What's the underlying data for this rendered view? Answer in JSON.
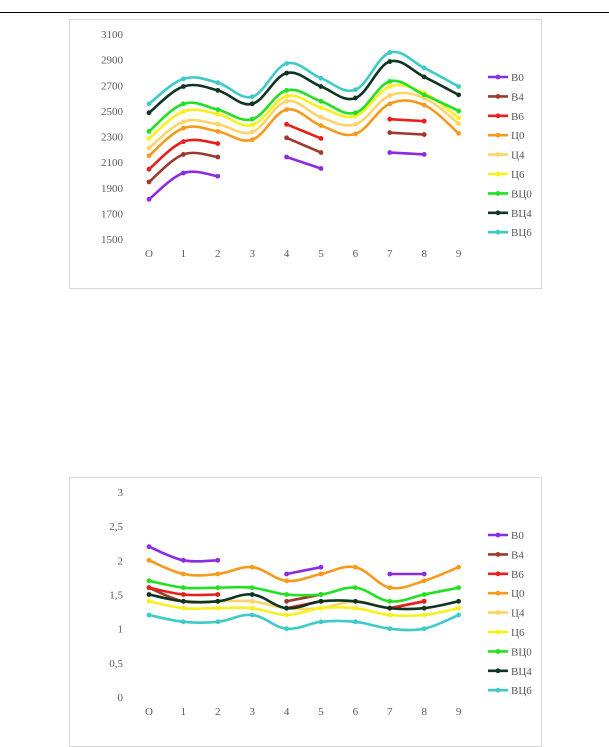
{
  "chart_data": [
    {
      "type": "line",
      "categories": [
        "O",
        "1",
        "2",
        "3",
        "4",
        "5",
        "6",
        "7",
        "8",
        "9"
      ],
      "yticks": [
        "1500",
        "1700",
        "1900",
        "2100",
        "2300",
        "2500",
        "2700",
        "2900",
        "3100"
      ],
      "ylim": [
        1500,
        3100
      ],
      "smooth": true,
      "grid": false,
      "legend_position": "right",
      "series": [
        {
          "name": "В0",
          "color": "#8b2be2",
          "values": [
            1810,
            2015,
            1990,
            null,
            2140,
            2050,
            null,
            2175,
            2160,
            null
          ]
        },
        {
          "name": "В4",
          "color": "#9e3a2d",
          "values": [
            1945,
            2160,
            2140,
            null,
            2290,
            2175,
            null,
            2330,
            2315,
            null
          ]
        },
        {
          "name": "В6",
          "color": "#e8201a",
          "values": [
            2045,
            2260,
            2245,
            null,
            2395,
            2285,
            null,
            2435,
            2420,
            null
          ]
        },
        {
          "name": "Ц0",
          "color": "#f59a1c",
          "values": [
            2150,
            2365,
            2340,
            2275,
            2510,
            2385,
            2320,
            2555,
            2545,
            2325
          ]
        },
        {
          "name": "Ц4",
          "color": "#fdd468",
          "values": [
            2210,
            2415,
            2395,
            2335,
            2575,
            2450,
            2395,
            2620,
            2600,
            2400
          ]
        },
        {
          "name": "Ц6",
          "color": "#f6f11f",
          "values": [
            2285,
            2495,
            2475,
            2390,
            2615,
            2525,
            2460,
            2690,
            2640,
            2445
          ]
        },
        {
          "name": "ВЦ0",
          "color": "#22e023",
          "values": [
            2340,
            2555,
            2510,
            2435,
            2660,
            2575,
            2485,
            2730,
            2625,
            2500
          ]
        },
        {
          "name": "ВЦ4",
          "color": "#0e3524",
          "values": [
            2485,
            2690,
            2660,
            2555,
            2795,
            2690,
            2600,
            2885,
            2765,
            2625
          ]
        },
        {
          "name": "ВЦ6",
          "color": "#3ccbc7",
          "values": [
            2555,
            2750,
            2720,
            2610,
            2870,
            2755,
            2665,
            2955,
            2835,
            2690
          ]
        }
      ]
    },
    {
      "type": "line",
      "categories": [
        "O",
        "1",
        "2",
        "3",
        "4",
        "5",
        "6",
        "7",
        "8",
        "9"
      ],
      "yticks": [
        "0",
        "0,5",
        "1",
        "1,5",
        "2",
        "2,5",
        "3"
      ],
      "ylim": [
        0,
        3
      ],
      "smooth": true,
      "grid": false,
      "legend_position": "right",
      "series": [
        {
          "name": "В0",
          "color": "#8b2be2",
          "values": [
            2.2,
            2.0,
            2.0,
            null,
            1.8,
            1.9,
            null,
            1.8,
            1.8,
            null
          ]
        },
        {
          "name": "В4",
          "color": "#9e3a2d",
          "values": [
            1.6,
            1.4,
            1.4,
            null,
            1.4,
            1.5,
            null,
            1.3,
            1.4,
            null
          ]
        },
        {
          "name": "В6",
          "color": "#e8201a",
          "values": [
            1.6,
            1.5,
            1.5,
            null,
            1.3,
            1.4,
            null,
            1.3,
            1.4,
            null
          ]
        },
        {
          "name": "Ц0",
          "color": "#f59a1c",
          "values": [
            2.0,
            1.8,
            1.8,
            1.9,
            1.7,
            1.8,
            1.9,
            1.6,
            1.7,
            1.9
          ]
        },
        {
          "name": "Ц4",
          "color": "#fdd468",
          "values": [
            1.5,
            1.4,
            1.4,
            1.4,
            1.3,
            1.3,
            1.4,
            1.3,
            1.3,
            1.4
          ]
        },
        {
          "name": "Ц6",
          "color": "#f6f11f",
          "values": [
            1.4,
            1.3,
            1.3,
            1.3,
            1.2,
            1.3,
            1.3,
            1.2,
            1.2,
            1.3
          ]
        },
        {
          "name": "ВЦ0",
          "color": "#22e023",
          "values": [
            1.7,
            1.6,
            1.6,
            1.6,
            1.5,
            1.5,
            1.6,
            1.4,
            1.5,
            1.6
          ]
        },
        {
          "name": "ВЦ4",
          "color": "#0e3524",
          "values": [
            1.5,
            1.4,
            1.4,
            1.5,
            1.3,
            1.4,
            1.4,
            1.3,
            1.3,
            1.4
          ]
        },
        {
          "name": "ВЦ6",
          "color": "#3ccbc7",
          "values": [
            1.2,
            1.1,
            1.1,
            1.2,
            1.0,
            1.1,
            1.1,
            1.0,
            1.0,
            1.2
          ]
        }
      ]
    }
  ]
}
